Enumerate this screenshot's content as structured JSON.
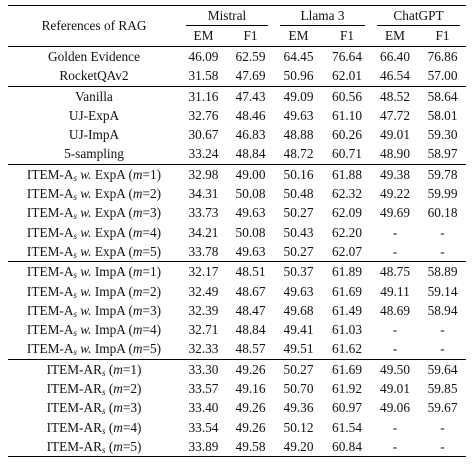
{
  "header": {
    "row_label": "References of RAG",
    "models": [
      "Mistral",
      "Llama 3",
      "ChatGPT"
    ],
    "metrics": [
      "EM",
      "F1",
      "EM",
      "F1",
      "EM",
      "F1"
    ]
  },
  "groups": [
    {
      "name": "references",
      "rows": [
        {
          "label": "Golden Evidence",
          "values": [
            "46.09",
            "62.59",
            "64.45",
            "76.64",
            "66.40",
            "76.86"
          ],
          "bold": []
        },
        {
          "label": "RocketQAv2",
          "values": [
            "31.58",
            "47.69",
            "50.96",
            "62.01",
            "46.54",
            "57.00"
          ],
          "bold": [
            2
          ]
        }
      ]
    },
    {
      "name": "baselines",
      "rows": [
        {
          "label": "Vanilla",
          "values": [
            "31.16",
            "47.43",
            "49.09",
            "60.56",
            "48.52",
            "58.64"
          ],
          "bold": []
        },
        {
          "label": "UJ-ExpA",
          "values": [
            "32.76",
            "48.46",
            "49.63",
            "61.10",
            "47.72",
            "58.01"
          ],
          "bold": []
        },
        {
          "label": "UJ-ImpA",
          "values": [
            "30.67",
            "46.83",
            "48.88",
            "60.26",
            "49.01",
            "59.30"
          ],
          "bold": []
        },
        {
          "label": "5-sampling",
          "values": [
            "33.24",
            "48.84",
            "48.72",
            "60.71",
            "48.90",
            "58.97"
          ],
          "bold": []
        }
      ]
    },
    {
      "name": "item-as-expa",
      "rows": [
        {
          "label_base": "ITEM-A",
          "label_sub": "s",
          "label_mid": "w.",
          "label_tail": "ExpA (",
          "label_m": "m",
          "label_end": "=1)",
          "values": [
            "32.98",
            "49.00",
            "50.16",
            "61.88",
            "49.38",
            "59.78"
          ],
          "bold": []
        },
        {
          "label_base": "ITEM-A",
          "label_sub": "s",
          "label_mid": "w.",
          "label_tail": "ExpA (",
          "label_m": "m",
          "label_end": "=2)",
          "values": [
            "34.31",
            "50.08",
            "50.48",
            "62.32",
            "49.22",
            "59.99"
          ],
          "bold": [
            0,
            1,
            3
          ]
        },
        {
          "label_base": "ITEM-A",
          "label_sub": "s",
          "label_mid": "w.",
          "label_tail": "ExpA (",
          "label_m": "m",
          "label_end": "=3)",
          "values": [
            "33.73",
            "49.63",
            "50.27",
            "62.09",
            "49.69",
            "60.18"
          ],
          "bold": [
            4,
            5
          ]
        },
        {
          "label_base": "ITEM-A",
          "label_sub": "s",
          "label_mid": "w.",
          "label_tail": "ExpA (",
          "label_m": "m",
          "label_end": "=4)",
          "values": [
            "34.21",
            "50.08",
            "50.43",
            "62.20",
            "-",
            "-"
          ],
          "bold": []
        },
        {
          "label_base": "ITEM-A",
          "label_sub": "s",
          "label_mid": "w.",
          "label_tail": "ExpA (",
          "label_m": "m",
          "label_end": "=5)",
          "values": [
            "33.78",
            "49.63",
            "50.27",
            "62.07",
            "-",
            "-"
          ],
          "bold": []
        }
      ]
    },
    {
      "name": "item-as-impa",
      "rows": [
        {
          "label_base": "ITEM-A",
          "label_sub": "s",
          "label_mid": "w.",
          "label_tail": "ImpA (",
          "label_m": "m",
          "label_end": "=1)",
          "values": [
            "32.17",
            "48.51",
            "50.37",
            "61.89",
            "48.75",
            "58.89"
          ],
          "bold": []
        },
        {
          "label_base": "ITEM-A",
          "label_sub": "s",
          "label_mid": "w.",
          "label_tail": "ImpA (",
          "label_m": "m",
          "label_end": "=2)",
          "values": [
            "32.49",
            "48.67",
            "49.63",
            "61.69",
            "49.11",
            "59.14"
          ],
          "bold": []
        },
        {
          "label_base": "ITEM-A",
          "label_sub": "s",
          "label_mid": "w.",
          "label_tail": "ImpA (",
          "label_m": "m",
          "label_end": "=3)",
          "values": [
            "32.39",
            "48.47",
            "49.68",
            "61.49",
            "48.69",
            "58.94"
          ],
          "bold": []
        },
        {
          "label_base": "ITEM-A",
          "label_sub": "s",
          "label_mid": "w.",
          "label_tail": "ImpA (",
          "label_m": "m",
          "label_end": "=4)",
          "values": [
            "32.71",
            "48.84",
            "49.41",
            "61.03",
            "-",
            "-"
          ],
          "bold": []
        },
        {
          "label_base": "ITEM-A",
          "label_sub": "s",
          "label_mid": "w.",
          "label_tail": "ImpA (",
          "label_m": "m",
          "label_end": "=5)",
          "values": [
            "32.33",
            "48.57",
            "49.51",
            "61.62",
            "-",
            "-"
          ],
          "bold": []
        }
      ]
    },
    {
      "name": "item-ars",
      "rows": [
        {
          "label_base": "ITEM-AR",
          "label_sub": "s",
          "label_tail": "(",
          "label_m": "m",
          "label_end": "=1)",
          "values": [
            "33.30",
            "49.26",
            "50.27",
            "61.69",
            "49.50",
            "59.64"
          ],
          "bold": []
        },
        {
          "label_base": "ITEM-AR",
          "label_sub": "s",
          "label_tail": "(",
          "label_m": "m",
          "label_end": "=2)",
          "values": [
            "33.57",
            "49.16",
            "50.70",
            "61.92",
            "49.01",
            "59.85"
          ],
          "bold": []
        },
        {
          "label_base": "ITEM-AR",
          "label_sub": "s",
          "label_tail": "(",
          "label_m": "m",
          "label_end": "=3)",
          "values": [
            "33.40",
            "49.26",
            "49.36",
            "60.97",
            "49.06",
            "59.67"
          ],
          "bold": []
        },
        {
          "label_base": "ITEM-AR",
          "label_sub": "s",
          "label_tail": "(",
          "label_m": "m",
          "label_end": "=4)",
          "values": [
            "33.54",
            "49.26",
            "50.12",
            "61.54",
            "-",
            "-"
          ],
          "bold": []
        },
        {
          "label_base": "ITEM-AR",
          "label_sub": "s",
          "label_tail": "(",
          "label_m": "m",
          "label_end": "=5)",
          "values": [
            "33.89",
            "49.58",
            "49.20",
            "60.84",
            "-",
            "-"
          ],
          "bold": []
        }
      ]
    }
  ]
}
